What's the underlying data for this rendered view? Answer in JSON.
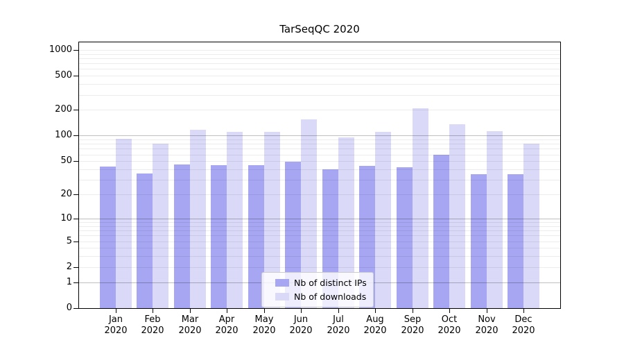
{
  "chart_data": {
    "type": "bar",
    "title": "TarSeqQC 2020",
    "categories": [
      "Jan",
      "Feb",
      "Mar",
      "Apr",
      "May",
      "Jun",
      "Jul",
      "Aug",
      "Sep",
      "Oct",
      "Nov",
      "Dec"
    ],
    "category_year": "2020",
    "series": [
      {
        "key": "ips",
        "name": "Nb of distinct IPs",
        "color": "#a6a6f2",
        "values": [
          43,
          36,
          46,
          45,
          45,
          49,
          40,
          44,
          42,
          60,
          35,
          35
        ]
      },
      {
        "key": "downloads",
        "name": "Nb of downloads",
        "color": "#dadaf8",
        "values": [
          92,
          80,
          118,
          110,
          110,
          155,
          95,
          110,
          210,
          135,
          112,
          80
        ]
      }
    ],
    "y_axis": {
      "scale": "log1p",
      "ylim": [
        0,
        1000
      ],
      "ticks": [
        0,
        1,
        2,
        5,
        10,
        20,
        50,
        100,
        200,
        500,
        1000
      ],
      "major_gridlines": [
        1,
        10,
        100
      ],
      "minor_gridlines": [
        2,
        3,
        4,
        5,
        6,
        7,
        8,
        9,
        20,
        30,
        40,
        50,
        60,
        70,
        80,
        90,
        200,
        300,
        400,
        500,
        600,
        700,
        800,
        900,
        1000
      ]
    },
    "legend_position": "lower center inside",
    "colors": {
      "axis": "#000000",
      "grid_major": "#bfbfbf",
      "grid_minor": "#ebebeb"
    }
  }
}
